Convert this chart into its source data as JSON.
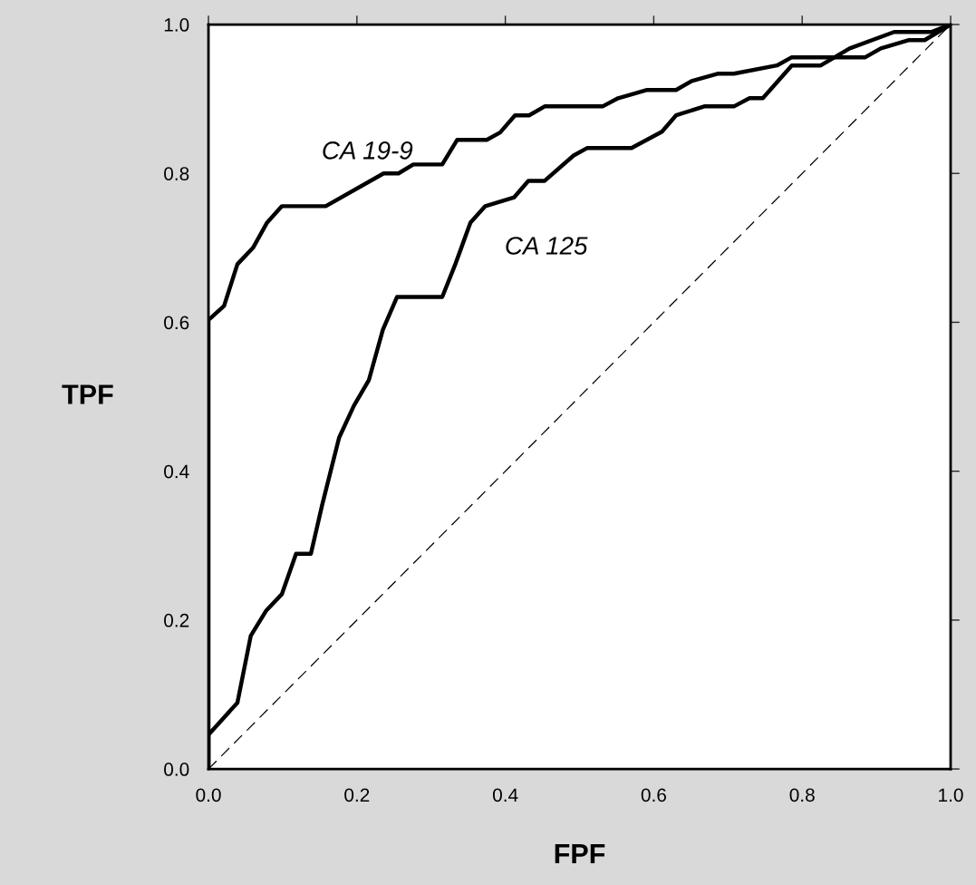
{
  "chart_data": {
    "type": "line",
    "xlabel": "FPF",
    "ylabel": "TPF",
    "xlim": [
      0,
      1
    ],
    "ylim": [
      0,
      1
    ],
    "xticks": [
      {
        "value": 0,
        "label": "0.0"
      },
      0.2,
      0.4,
      0.6,
      0.8,
      {
        "value": 1,
        "label": "1.0"
      }
    ],
    "yticks": [
      {
        "value": 0,
        "label": "0.0"
      },
      0.2,
      0.4,
      0.6,
      0.8,
      {
        "value": 1,
        "label": "1.0"
      }
    ],
    "grid": false,
    "legend": false,
    "marker": "none",
    "series": [
      {
        "color": "#000000",
        "line_style": "solid",
        "x": [
          0,
          0,
          0.021,
          0.039,
          0.06,
          0.079,
          0.099,
          0.158,
          0.236,
          0.256,
          0.276,
          0.315,
          0.335,
          0.375,
          0.393,
          0.413,
          0.432,
          0.453,
          0.531,
          0.552,
          0.59,
          0.63,
          0.651,
          0.687,
          0.708,
          0.766,
          0.786,
          0.885,
          0.906,
          0.943,
          0.965,
          1
        ],
        "values": [
          0,
          0.603,
          0.622,
          0.678,
          0.7,
          0.734,
          0.756,
          0.756,
          0.8,
          0.8,
          0.812,
          0.812,
          0.845,
          0.845,
          0.855,
          0.878,
          0.878,
          0.89,
          0.89,
          0.901,
          0.912,
          0.912,
          0.924,
          0.934,
          0.934,
          0.945,
          0.956,
          0.956,
          0.968,
          0.979,
          0.979,
          1
        ]
      },
      {
        "color": "#000000",
        "line_style": "solid",
        "x": [
          0,
          0,
          0.039,
          0.057,
          0.078,
          0.099,
          0.118,
          0.138,
          0.153,
          0.176,
          0.196,
          0.216,
          0.235,
          0.254,
          0.315,
          0.333,
          0.353,
          0.373,
          0.412,
          0.431,
          0.453,
          0.492,
          0.51,
          0.57,
          0.611,
          0.63,
          0.668,
          0.708,
          0.729,
          0.747,
          0.786,
          0.825,
          0.864,
          0.924,
          0.974,
          1
        ],
        "values": [
          0,
          0.046,
          0.089,
          0.179,
          0.213,
          0.235,
          0.289,
          0.289,
          0.354,
          0.445,
          0.488,
          0.522,
          0.59,
          0.634,
          0.634,
          0.679,
          0.734,
          0.756,
          0.768,
          0.79,
          0.79,
          0.824,
          0.834,
          0.834,
          0.856,
          0.878,
          0.89,
          0.89,
          0.901,
          0.901,
          0.945,
          0.945,
          0.968,
          0.99,
          0.99,
          1
        ]
      },
      {
        "color": "#000000",
        "line_style": "dashed",
        "x": [
          0,
          1
        ],
        "values": [
          0,
          1
        ]
      }
    ],
    "annotations": [
      "CA 19-9",
      "CA 125"
    ]
  }
}
